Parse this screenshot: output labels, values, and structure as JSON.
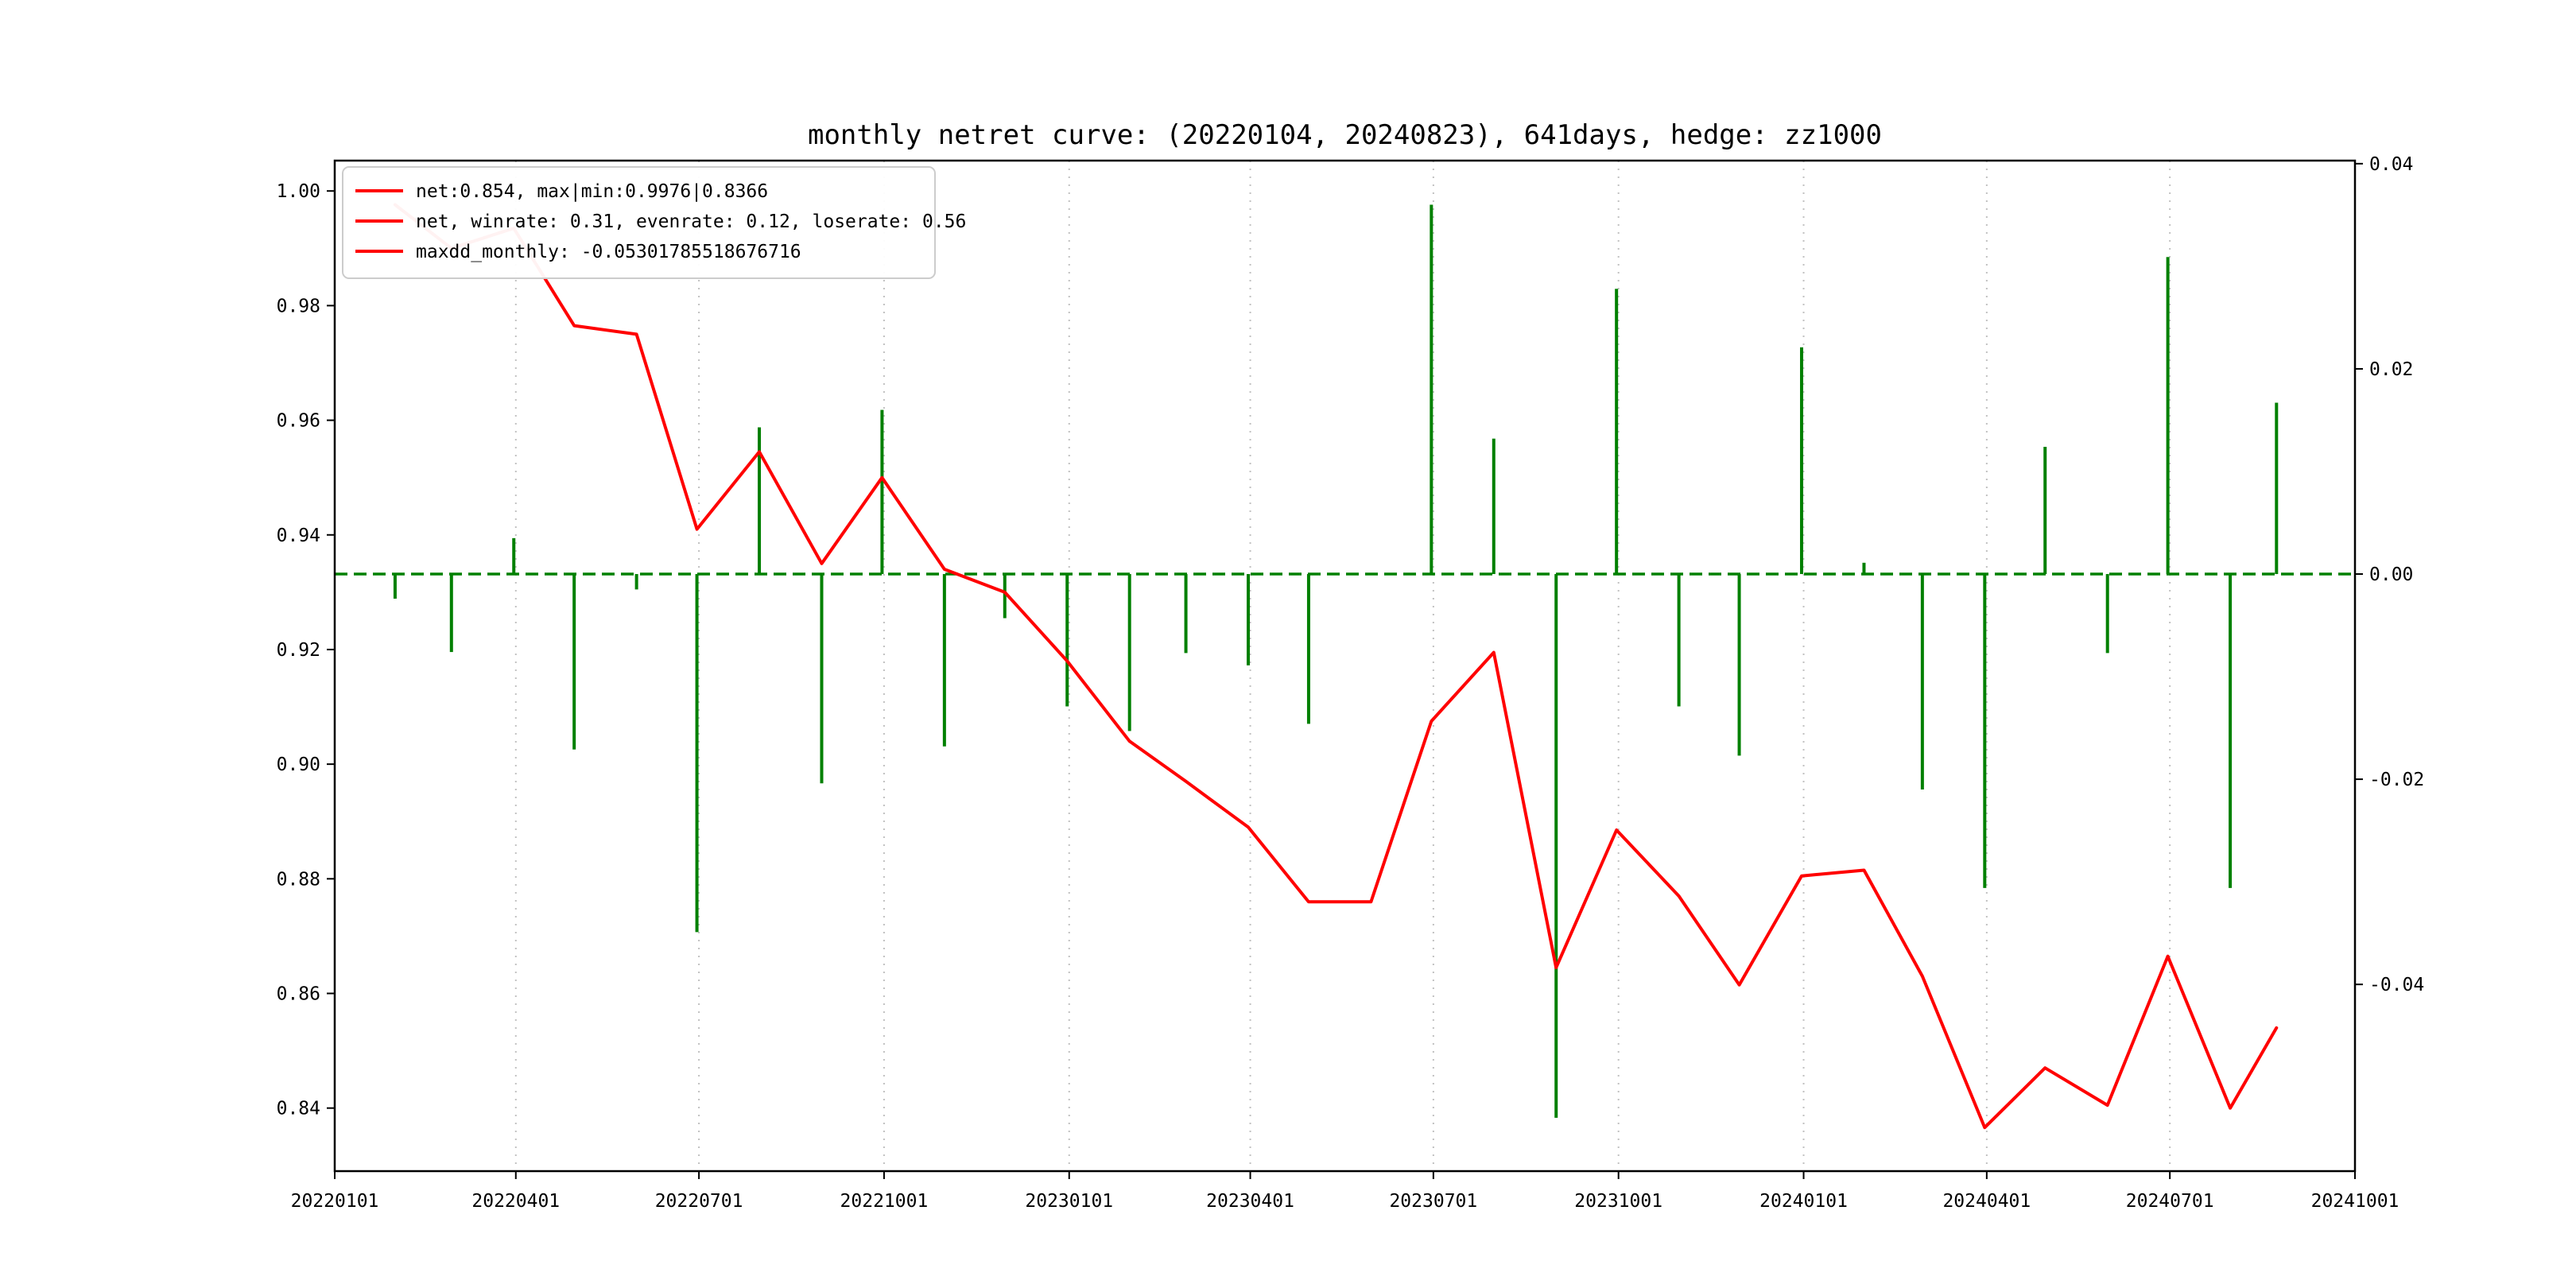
{
  "title": "monthly netret curve: (20220104, 20240823), 641days, hedge: zz1000",
  "legend": {
    "items": [
      "net:0.854, max|min:0.9976|0.8366",
      "net, winrate: 0.31, evenrate: 0.12, loserate: 0.56",
      "maxdd_monthly: -0.05301785518676716"
    ]
  },
  "colors": {
    "net_line": "#ff0000",
    "bars": "#008000",
    "zero_line": "#008000",
    "grid": "#bbbbbb",
    "axis": "#000000",
    "legend_border": "#cccccc"
  },
  "chart_data": {
    "type": "line+bar",
    "title": "monthly netret curve: (20220104, 20240823), 641days, hedge: zz1000",
    "x_range": [
      "2022-01-01",
      "2024-10-01"
    ],
    "x_tick_labels": [
      "20220101",
      "20220401",
      "20220701",
      "20221001",
      "20230101",
      "20230401",
      "20230701",
      "20231001",
      "20240101",
      "20240401",
      "20240701",
      "20241001"
    ],
    "left_y_ticks": [
      0.84,
      0.86,
      0.88,
      0.9,
      0.92,
      0.94,
      0.96,
      0.98,
      1.0
    ],
    "right_y_ticks": [
      -0.04,
      -0.02,
      0.0,
      0.02,
      0.04
    ],
    "left_ylim": [
      0.829,
      1.0053
    ],
    "right_ylim": [
      -0.0582,
      0.0403
    ],
    "grid": "vertical-dotted",
    "legend_position": "upper-left",
    "zero_line": {
      "axis": "right",
      "value": 0,
      "style": "dashed",
      "color": "#008000"
    },
    "dates": [
      "2022-01-31",
      "2022-02-28",
      "2022-03-31",
      "2022-04-30",
      "2022-05-31",
      "2022-06-30",
      "2022-07-31",
      "2022-08-31",
      "2022-09-30",
      "2022-10-31",
      "2022-11-30",
      "2022-12-31",
      "2023-01-31",
      "2023-02-28",
      "2023-03-31",
      "2023-04-30",
      "2023-05-31",
      "2023-06-30",
      "2023-07-31",
      "2023-08-31",
      "2023-09-30",
      "2023-10-31",
      "2023-11-30",
      "2023-12-31",
      "2024-01-31",
      "2024-02-29",
      "2024-03-31",
      "2024-04-30",
      "2024-05-31",
      "2024-06-30",
      "2024-07-31",
      "2024-08-23"
    ],
    "series": [
      {
        "name": "net",
        "type": "line",
        "axis": "left",
        "color": "#ff0000",
        "values": [
          0.9976,
          0.99,
          0.9935,
          0.9765,
          0.975,
          0.941,
          0.9545,
          0.935,
          0.95,
          0.934,
          0.93,
          0.918,
          0.904,
          0.897,
          0.889,
          0.876,
          0.876,
          0.9075,
          0.9195,
          0.8645,
          0.8885,
          0.877,
          0.8615,
          0.8805,
          0.8815,
          0.863,
          0.8366,
          0.847,
          0.8405,
          0.8665,
          0.84,
          0.854
        ]
      },
      {
        "name": "monthly_return",
        "type": "bar",
        "axis": "right",
        "color": "#008000",
        "values": [
          -0.0024,
          -0.0076,
          0.0035,
          -0.0171,
          -0.0015,
          -0.0349,
          0.0143,
          -0.0204,
          0.016,
          -0.0168,
          -0.0043,
          -0.0129,
          -0.0153,
          -0.0077,
          -0.0089,
          -0.0146,
          0.0,
          0.036,
          0.0132,
          -0.053,
          0.0278,
          -0.0129,
          -0.0177,
          0.0221,
          0.0011,
          -0.021,
          -0.0306,
          0.0124,
          -0.0077,
          0.0309,
          -0.0306,
          0.0167
        ]
      }
    ]
  }
}
